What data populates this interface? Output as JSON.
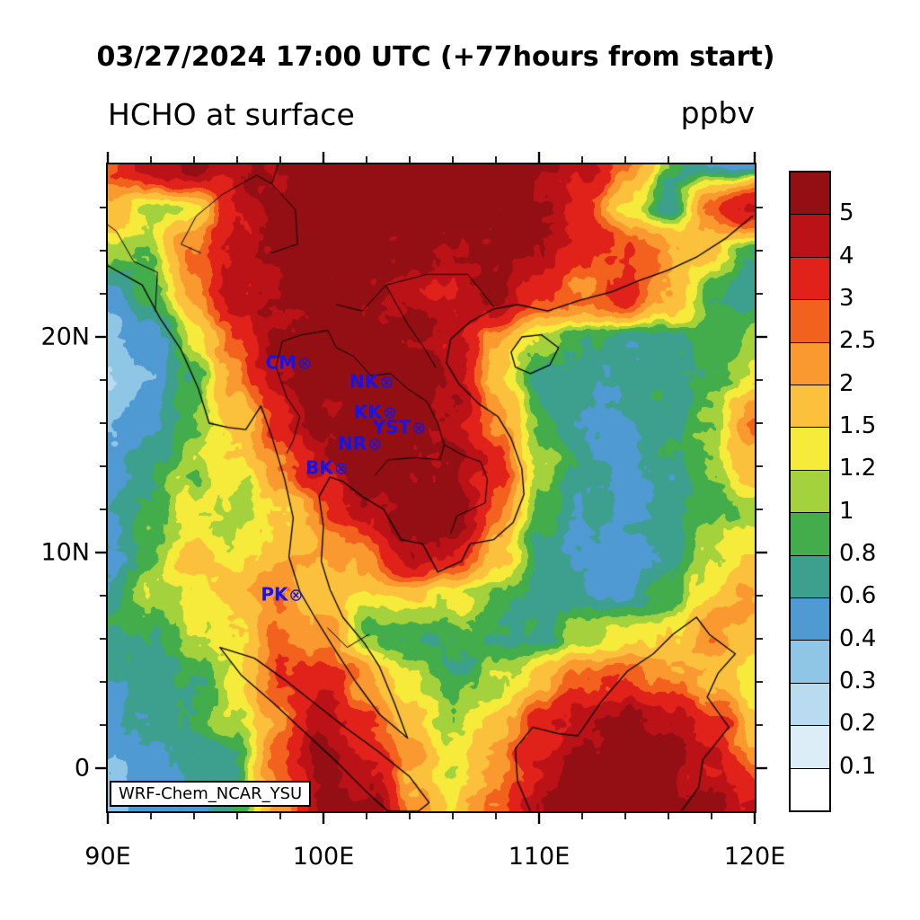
{
  "header": {
    "datetime_title": "03/27/2024 17:00 UTC (+77hours from start)",
    "variable_title": "HCHO at surface",
    "units_label": "ppbv"
  },
  "watermark": "WRF-Chem_NCAR_YSU",
  "chart_data": {
    "type": "heatmap",
    "title": "HCHO at surface",
    "subtitle": "03/27/2024 17:00 UTC (+77hours from start)",
    "units": "ppbv",
    "x_axis": {
      "range": [
        90,
        120
      ],
      "minor_step": 2,
      "ticks": [
        {
          "value": 90,
          "label": "90E"
        },
        {
          "value": 100,
          "label": "100E"
        },
        {
          "value": 110,
          "label": "110E"
        },
        {
          "value": 120,
          "label": "120E"
        }
      ]
    },
    "y_axis": {
      "range": [
        -2,
        28
      ],
      "minor_step": 2,
      "ticks": [
        {
          "value": 0,
          "label": "0"
        },
        {
          "value": 10,
          "label": "10N"
        },
        {
          "value": 20,
          "label": "20N"
        }
      ]
    },
    "colorbar": {
      "units": "ppbv",
      "levels": [
        0.1,
        0.2,
        0.3,
        0.4,
        0.6,
        0.8,
        1.0,
        1.2,
        1.5,
        2.0,
        2.5,
        3.0,
        4.0,
        5.0
      ],
      "labels": [
        "0.1",
        "0.2",
        "0.3",
        "0.4",
        "0.6",
        "0.8",
        "1",
        "1.2",
        "1.5",
        "2",
        "2.5",
        "3",
        "4",
        "5"
      ],
      "colors": [
        "#ffffff",
        "#dcedf8",
        "#b9dbf0",
        "#8fc6e6",
        "#4f9ad2",
        "#3da08e",
        "#42ad4a",
        "#a4d23c",
        "#f6ea3a",
        "#fcc13c",
        "#f9992f",
        "#f2611d",
        "#e0221a",
        "#bb1218",
        "#930f14"
      ]
    },
    "colors": {
      "station": "#1515e8",
      "coastline": "#000000"
    },
    "stations": [
      {
        "label": "CM",
        "symbol": "⊗",
        "lon": 99.0,
        "lat": 18.8
      },
      {
        "label": "NK",
        "symbol": "⊗",
        "lon": 102.8,
        "lat": 17.9
      },
      {
        "label": "KK",
        "symbol": "⊗",
        "lon": 102.95,
        "lat": 16.5
      },
      {
        "label": "YST",
        "symbol": "⊗",
        "lon": 104.3,
        "lat": 15.8
      },
      {
        "label": "NR",
        "symbol": "⊗",
        "lon": 102.25,
        "lat": 15.05
      },
      {
        "label": "BK",
        "symbol": "⊗",
        "lon": 100.7,
        "lat": 13.9
      },
      {
        "label": "PK",
        "symbol": "⊗",
        "lon": 98.6,
        "lat": 8.05
      }
    ],
    "grid": {
      "lons": [
        90,
        92,
        94,
        96,
        98,
        100,
        102,
        104,
        106,
        108,
        110,
        112,
        114,
        116,
        118,
        120
      ],
      "lats": [
        28,
        26,
        24,
        22,
        20,
        18,
        16,
        14,
        12,
        10,
        8,
        6,
        4,
        2,
        0,
        -2
      ],
      "values": [
        [
          2.8,
          4.2,
          5.6,
          4.5,
          5.8,
          6.2,
          6.2,
          5.8,
          6.0,
          5.8,
          5.2,
          4.5,
          2.6,
          0.9,
          0.5,
          0.45
        ],
        [
          2.0,
          1.2,
          1.5,
          4.0,
          5.8,
          6.2,
          6.0,
          5.6,
          5.8,
          6.0,
          5.0,
          3.5,
          1.5,
          0.7,
          2.5,
          4.0
        ],
        [
          1.2,
          1.0,
          2.5,
          5.0,
          6.0,
          6.0,
          5.5,
          5.0,
          5.0,
          5.5,
          4.5,
          3.5,
          3.0,
          2.0,
          1.5,
          0.8
        ],
        [
          0.5,
          0.8,
          2.0,
          4.5,
          5.5,
          6.0,
          5.0,
          4.5,
          4.2,
          4.8,
          3.0,
          2.8,
          3.2,
          2.0,
          0.8,
          0.6
        ],
        [
          0.35,
          0.5,
          1.2,
          2.8,
          5.2,
          6.0,
          6.0,
          5.5,
          4.2,
          2.2,
          1.2,
          0.8,
          0.7,
          0.8,
          0.9,
          1.1
        ],
        [
          0.3,
          0.45,
          0.9,
          2.2,
          4.8,
          6.0,
          6.2,
          6.0,
          4.5,
          1.6,
          0.8,
          0.65,
          0.6,
          0.7,
          0.85,
          1.3
        ],
        [
          0.4,
          0.55,
          0.9,
          1.6,
          3.2,
          5.2,
          6.2,
          5.8,
          5.2,
          2.2,
          0.85,
          0.6,
          0.6,
          0.75,
          1.1,
          2.6
        ],
        [
          0.5,
          0.8,
          1.1,
          1.3,
          2.2,
          4.2,
          6.0,
          6.2,
          5.6,
          3.2,
          1.1,
          0.7,
          0.6,
          0.7,
          1.0,
          1.6
        ],
        [
          0.55,
          0.85,
          1.3,
          1.1,
          1.6,
          2.6,
          4.2,
          5.6,
          5.2,
          2.6,
          0.85,
          0.6,
          0.55,
          0.65,
          0.85,
          1.1
        ],
        [
          0.6,
          0.9,
          1.6,
          1.3,
          1.6,
          1.9,
          2.6,
          4.6,
          4.2,
          1.6,
          0.75,
          0.6,
          0.5,
          0.6,
          1.1,
          1.6
        ],
        [
          0.7,
          1.1,
          1.3,
          1.6,
          2.4,
          1.6,
          1.3,
          1.6,
          1.3,
          0.85,
          0.7,
          0.6,
          0.6,
          0.85,
          1.6,
          2.2
        ],
        [
          0.85,
          0.85,
          1.1,
          1.6,
          2.6,
          2.2,
          1.1,
          0.85,
          0.8,
          0.75,
          0.85,
          1.1,
          1.3,
          1.6,
          2.2,
          1.6
        ],
        [
          0.6,
          0.7,
          0.85,
          1.3,
          2.6,
          3.6,
          2.2,
          1.1,
          0.85,
          1.1,
          1.6,
          2.6,
          3.2,
          2.6,
          2.2,
          1.3
        ],
        [
          0.5,
          0.6,
          0.75,
          1.1,
          2.2,
          4.6,
          3.2,
          1.6,
          1.1,
          1.6,
          3.2,
          4.6,
          5.6,
          5.2,
          3.6,
          1.6
        ],
        [
          0.4,
          0.5,
          0.6,
          0.85,
          2.6,
          5.6,
          4.2,
          2.2,
          1.3,
          2.2,
          4.2,
          5.6,
          6.2,
          5.6,
          4.2,
          3.0
        ],
        [
          0.35,
          0.45,
          0.55,
          0.85,
          2.2,
          5.2,
          5.6,
          2.6,
          1.6,
          2.6,
          4.6,
          6.2,
          6.2,
          6.2,
          5.6,
          4.2
        ]
      ]
    }
  }
}
